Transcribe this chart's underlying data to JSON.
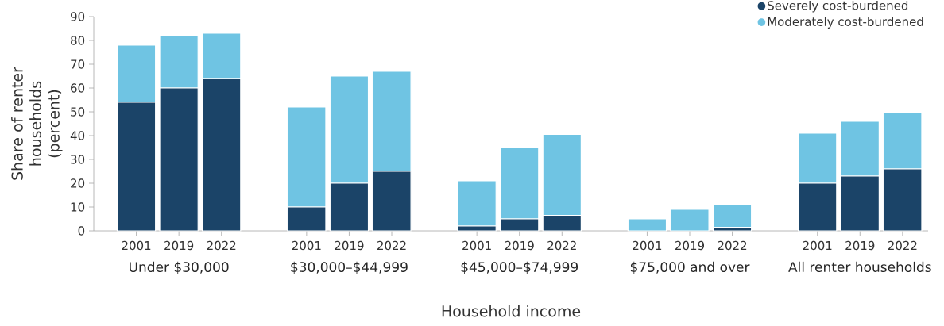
{
  "chart_data": {
    "type": "bar",
    "stacked": true,
    "xlabel": "Household income",
    "ylabel": "Share of renter households (percent)",
    "categories": [
      "2001",
      "2019",
      "2022",
      null,
      "2001",
      "2019",
      "2022",
      null,
      "2001",
      "2019",
      "2022",
      null,
      "2001",
      "2019",
      "2022",
      null,
      "2001",
      "2019",
      "2022"
    ],
    "series": [
      {
        "name": "Severely cost-burdened",
        "color": "#1b4468",
        "values": [
          54,
          60,
          64,
          null,
          10,
          20,
          25,
          null,
          2,
          5,
          6.5,
          null,
          0,
          0,
          1.5,
          null,
          20,
          23,
          26
        ]
      },
      {
        "name": "Moderately cost-burdened",
        "color": "#6fc4e3",
        "values": [
          24,
          22,
          19,
          null,
          42,
          45,
          42,
          null,
          19,
          30,
          34,
          null,
          5,
          9,
          9.5,
          null,
          21,
          23,
          23.5
        ]
      }
    ],
    "annotations": [
      "Under $30,000",
      "$30,000–$44,999",
      "$45,000–$74,999",
      "$75,000 and over",
      "All renter households"
    ],
    "ylim": [
      0,
      90
    ],
    "yticks": [
      0,
      10,
      20,
      30,
      40,
      50,
      60,
      70,
      80,
      90
    ],
    "legend": "top right",
    "grid": false
  }
}
